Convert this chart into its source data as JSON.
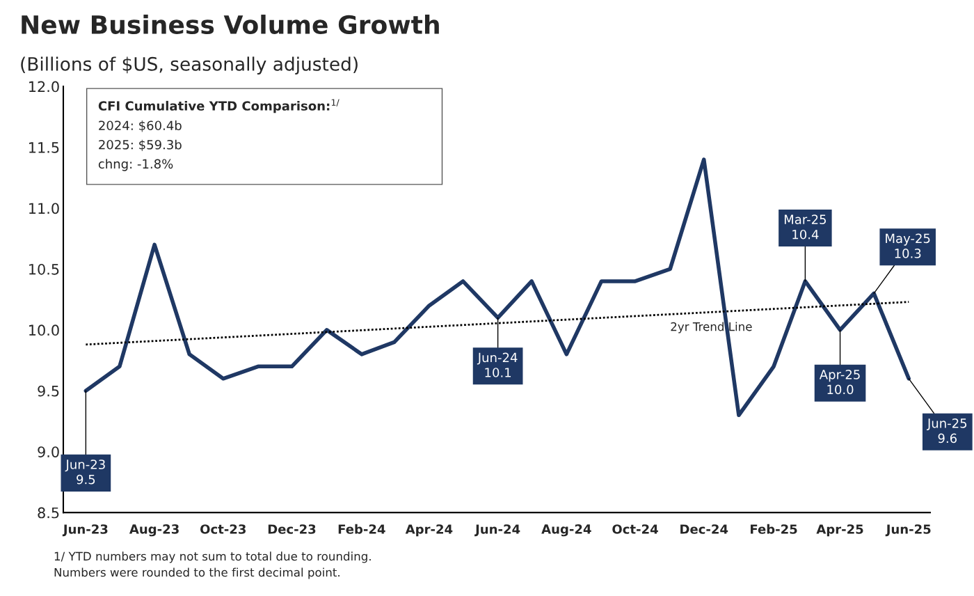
{
  "chart_data": {
    "type": "line",
    "title": "New Business Volume Growth",
    "subtitle": "(Billions of $US, seasonally adjusted)",
    "x": [
      "2023-06",
      "2023-07",
      "2023-08",
      "2023-09",
      "2023-10",
      "2023-11",
      "2023-12",
      "2024-01",
      "2024-02",
      "2024-03",
      "2024-04",
      "2024-05",
      "2024-06",
      "2024-07",
      "2024-08",
      "2024-09",
      "2024-10",
      "2024-11",
      "2024-12",
      "2025-01",
      "2025-02",
      "2025-03",
      "2025-04",
      "2025-05",
      "2025-06"
    ],
    "series": [
      {
        "color": "#1f3864",
        "values": [
          9.5,
          9.7,
          10.7,
          9.8,
          9.6,
          9.7,
          9.7,
          10.0,
          9.8,
          9.9,
          10.2,
          10.4,
          10.1,
          10.4,
          9.8,
          10.4,
          10.4,
          10.5,
          11.4,
          9.3,
          9.7,
          10.4,
          10.0,
          10.3,
          9.6
        ]
      },
      {
        "type": "line",
        "color": "#000000",
        "line_style": "dotted",
        "x": [
          "2023-06",
          "2025-06"
        ],
        "values": [
          9.88,
          10.23
        ]
      }
    ],
    "xlim": [
      "2023-05-12",
      "2025-06-20"
    ],
    "xticks": [
      {
        "value": "2023-06",
        "label": "Jun-23"
      },
      {
        "value": "2023-08",
        "label": "Aug-23"
      },
      {
        "value": "2023-10",
        "label": "Oct-23"
      },
      {
        "value": "2023-12",
        "label": "Dec-23"
      },
      {
        "value": "2024-02",
        "label": "Feb-24"
      },
      {
        "value": "2024-04",
        "label": "Apr-24"
      },
      {
        "value": "2024-06",
        "label": "Jun-24"
      },
      {
        "value": "2024-08",
        "label": "Aug-24"
      },
      {
        "value": "2024-10",
        "label": "Oct-24"
      },
      {
        "value": "2024-12",
        "label": "Dec-24"
      },
      {
        "value": "2025-02",
        "label": "Feb-25"
      },
      {
        "value": "2025-04",
        "label": "Apr-25"
      },
      {
        "value": "2025-06",
        "label": "Jun-25"
      }
    ],
    "ylim": [
      8.5,
      12.0
    ],
    "yticks": [
      {
        "value": 8.5,
        "label": "8.5"
      },
      {
        "value": 9.0,
        "label": "9.0"
      },
      {
        "value": 9.5,
        "label": "9.5"
      },
      {
        "value": 10.0,
        "label": "10.0"
      },
      {
        "value": 10.5,
        "label": "10.5"
      },
      {
        "value": 11.0,
        "label": "11.0"
      },
      {
        "value": 11.5,
        "label": "11.5"
      },
      {
        "value": 12.0,
        "label": "12.0"
      }
    ],
    "grid": false,
    "legend": false,
    "marker": "none",
    "line_style": "solid",
    "annotations": [
      {
        "text": "Jun-23\n9.5",
        "x": "2023-06",
        "y": 9.5
      },
      {
        "text": "Jun-24\n10.1",
        "x": "2024-06",
        "y": 10.1
      },
      {
        "text": "Mar-25\n10.4",
        "x": "2025-03",
        "y": 10.4
      },
      {
        "text": "Apr-25\n10.0",
        "x": "2025-04",
        "y": 10.0
      },
      {
        "text": "May-25\n10.3",
        "x": "2025-05",
        "y": 10.3
      },
      {
        "text": "Jun-25\n9.6",
        "x": "2025-06",
        "y": 9.6
      },
      "2yr Trend Line",
      "CFI Cumulative YTD Comparison:$^{1/}$",
      "2024: $60.4b",
      "2025: $59.3b",
      "chng: -1.8%",
      "1/ YTD numbers may not sum to total due to rounding.",
      "Numbers were rounded to the first decimal point."
    ]
  }
}
